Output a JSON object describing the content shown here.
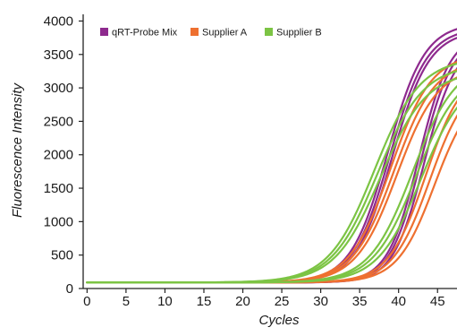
{
  "chart_data": {
    "type": "line",
    "title": "",
    "xlabel": "Cycles",
    "ylabel": "Fluorescence Intensity",
    "xlim": [
      -0.5,
      47.5
    ],
    "ylim": [
      0,
      4100
    ],
    "x_ticks": [
      0,
      5,
      10,
      15,
      20,
      25,
      30,
      35,
      40,
      45
    ],
    "y_ticks": [
      0,
      500,
      1000,
      1500,
      2000,
      2500,
      3000,
      3500,
      4000
    ],
    "grid": false,
    "legend_position": "top-left",
    "baseline": 90,
    "series": [
      {
        "name": "qRT-Probe Mix",
        "color": "#8e2a8e",
        "curves": [
          {
            "ct": 38.6,
            "plateau": 3970,
            "slope": 0.42
          },
          {
            "ct": 38.9,
            "plateau": 3900,
            "slope": 0.42
          },
          {
            "ct": 39.2,
            "plateau": 3860,
            "slope": 0.42
          },
          {
            "ct": 42.6,
            "plateau": 3820,
            "slope": 0.5
          },
          {
            "ct": 42.9,
            "plateau": 3760,
            "slope": 0.5
          },
          {
            "ct": 43.3,
            "plateau": 3680,
            "slope": 0.5
          }
        ]
      },
      {
        "name": "Supplier A",
        "color": "#ee7030",
        "curves": [
          {
            "ct": 39.0,
            "plateau": 3520,
            "slope": 0.38
          },
          {
            "ct": 39.4,
            "plateau": 3420,
            "slope": 0.38
          },
          {
            "ct": 39.8,
            "plateau": 3320,
            "slope": 0.38
          },
          {
            "ct": 43.5,
            "plateau": 3300,
            "slope": 0.42
          },
          {
            "ct": 44.0,
            "plateau": 3150,
            "slope": 0.42
          },
          {
            "ct": 44.6,
            "plateau": 3000,
            "slope": 0.42
          }
        ]
      },
      {
        "name": "Supplier B",
        "color": "#7cc444",
        "curves": [
          {
            "ct": 36.9,
            "plateau": 3450,
            "slope": 0.34
          },
          {
            "ct": 37.3,
            "plateau": 3350,
            "slope": 0.34
          },
          {
            "ct": 37.7,
            "plateau": 3250,
            "slope": 0.34
          },
          {
            "ct": 41.8,
            "plateau": 3400,
            "slope": 0.36
          },
          {
            "ct": 42.3,
            "plateau": 3300,
            "slope": 0.36
          },
          {
            "ct": 42.9,
            "plateau": 3200,
            "slope": 0.36
          }
        ]
      }
    ]
  }
}
